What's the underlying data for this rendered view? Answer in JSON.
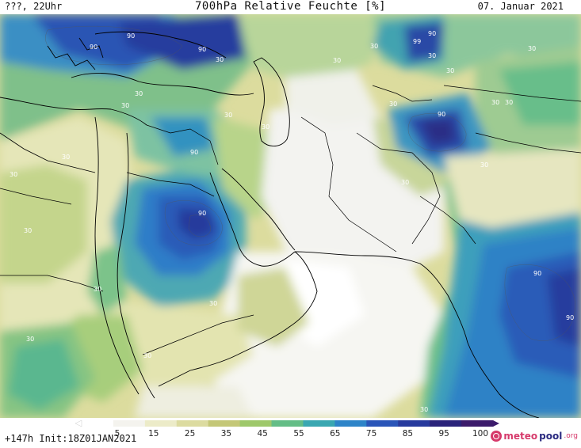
{
  "header": {
    "left_label": "???, 22Uhr",
    "title": "700hPa Relative Feuchte [%]",
    "date": "07. Januar 2021"
  },
  "footer": {
    "run_info": "+147h Init:18Z01JAN2021",
    "brand_part1": "meteo",
    "brand_part2": "pool",
    "brand_suffix": ".org"
  },
  "legend": {
    "ticks": [
      "5",
      "15",
      "25",
      "35",
      "45",
      "55",
      "65",
      "75",
      "85",
      "95",
      "100"
    ],
    "colors": [
      "#ffffff",
      "#f4f3ee",
      "#ecebc8",
      "#dcdba0",
      "#c4c777",
      "#9ec86a",
      "#64bd86",
      "#3aa7b1",
      "#2e84c8",
      "#2a55b8",
      "#273a9d",
      "#2a237a",
      "#3c1b6b"
    ]
  },
  "map": {
    "contour_labels": [
      "90",
      "90",
      "90",
      "30",
      "30",
      "30",
      "30",
      "99",
      "90",
      "30",
      "30",
      "30",
      "30",
      "30",
      "90",
      "30",
      "30",
      "30",
      "30",
      "30",
      "30",
      "30",
      "90",
      "30",
      "90",
      "90",
      "30",
      "30",
      "30",
      "30",
      "30",
      "90",
      "30"
    ]
  }
}
